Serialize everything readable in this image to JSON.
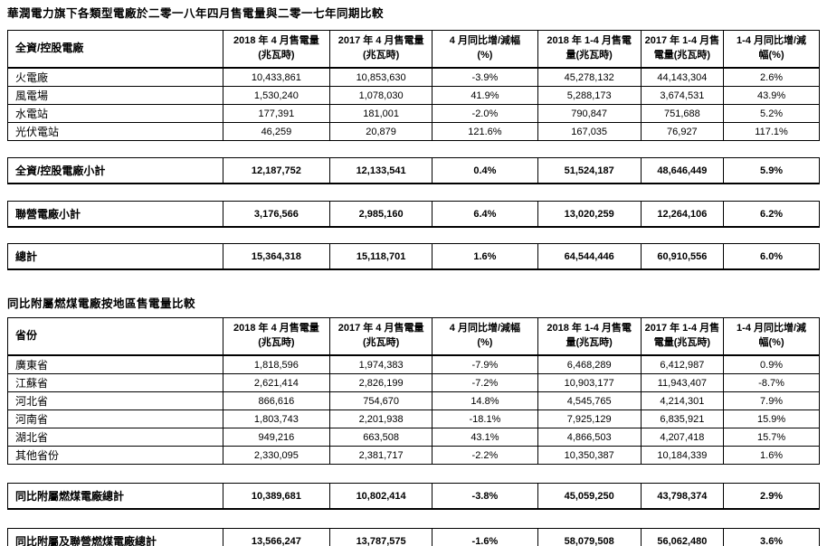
{
  "report": {
    "table1_title": "華潤電力旗下各類型電廠於二零一八年四月售電量與二零一七年同期比較",
    "table2_title": "同比附屬燃煤電廠按地區售電量比較"
  },
  "headers": {
    "cols": [
      {
        "l1": "2018 年 4 月售電量",
        "l2": "(兆瓦時)"
      },
      {
        "l1": "2017 年 4 月售電量",
        "l2": "(兆瓦時)"
      },
      {
        "l1": "4 月同比增/減幅",
        "l2": "(%)"
      },
      {
        "l1": "2018 年 1-4 月售電",
        "l2": "量(兆瓦時)"
      },
      {
        "l1": "2017 年 1-4 月售",
        "l2": "電量(兆瓦時)"
      },
      {
        "l1": "1-4 月同比增/減",
        "l2": "幅(%)"
      }
    ]
  },
  "table1": {
    "first_col_header": "全資/控股電廠",
    "rows": [
      {
        "label": "火電廠",
        "values": [
          "10,433,861",
          "10,853,630",
          "-3.9%",
          "45,278,132",
          "44,143,304",
          "2.6%"
        ]
      },
      {
        "label": "風電場",
        "values": [
          "1,530,240",
          "1,078,030",
          "41.9%",
          "5,288,173",
          "3,674,531",
          "43.9%"
        ]
      },
      {
        "label": "水電站",
        "values": [
          "177,391",
          "181,001",
          "-2.0%",
          "790,847",
          "751,688",
          "5.2%"
        ]
      },
      {
        "label": "光伏電站",
        "values": [
          "46,259",
          "20,879",
          "121.6%",
          "167,035",
          "76,927",
          "117.1%"
        ]
      }
    ],
    "summaries": [
      {
        "label": "全資/控股電廠小計",
        "values": [
          "12,187,752",
          "12,133,541",
          "0.4%",
          "51,524,187",
          "48,646,449",
          "5.9%"
        ]
      },
      {
        "label": "聯營電廠小計",
        "values": [
          "3,176,566",
          "2,985,160",
          "6.4%",
          "13,020,259",
          "12,264,106",
          "6.2%"
        ]
      },
      {
        "label": "總計",
        "values": [
          "15,364,318",
          "15,118,701",
          "1.6%",
          "64,544,446",
          "60,910,556",
          "6.0%"
        ]
      }
    ]
  },
  "table2": {
    "first_col_header": "省份",
    "rows": [
      {
        "label": "廣東省",
        "values": [
          "1,818,596",
          "1,974,383",
          "-7.9%",
          "6,468,289",
          "6,412,987",
          "0.9%"
        ]
      },
      {
        "label": "江蘇省",
        "values": [
          "2,621,414",
          "2,826,199",
          "-7.2%",
          "10,903,177",
          "11,943,407",
          "-8.7%"
        ]
      },
      {
        "label": "河北省",
        "values": [
          "866,616",
          "754,670",
          "14.8%",
          "4,545,765",
          "4,214,301",
          "7.9%"
        ]
      },
      {
        "label": "河南省",
        "values": [
          "1,803,743",
          "2,201,938",
          "-18.1%",
          "7,925,129",
          "6,835,921",
          "15.9%"
        ]
      },
      {
        "label": "湖北省",
        "values": [
          "949,216",
          "663,508",
          "43.1%",
          "4,866,503",
          "4,207,418",
          "15.7%"
        ]
      },
      {
        "label": "其他省份",
        "values": [
          "2,330,095",
          "2,381,717",
          "-2.2%",
          "10,350,387",
          "10,184,339",
          "1.6%"
        ]
      }
    ],
    "summaries": [
      {
        "label": "同比附屬燃煤電廠總計",
        "values": [
          "10,389,681",
          "10,802,414",
          "-3.8%",
          "45,059,250",
          "43,798,374",
          "2.9%"
        ]
      },
      {
        "label": "同比附屬及聯營燃煤電廠總計",
        "values": [
          "13,566,247",
          "13,787,575",
          "-1.6%",
          "58,079,508",
          "56,062,480",
          "3.6%"
        ]
      }
    ]
  }
}
